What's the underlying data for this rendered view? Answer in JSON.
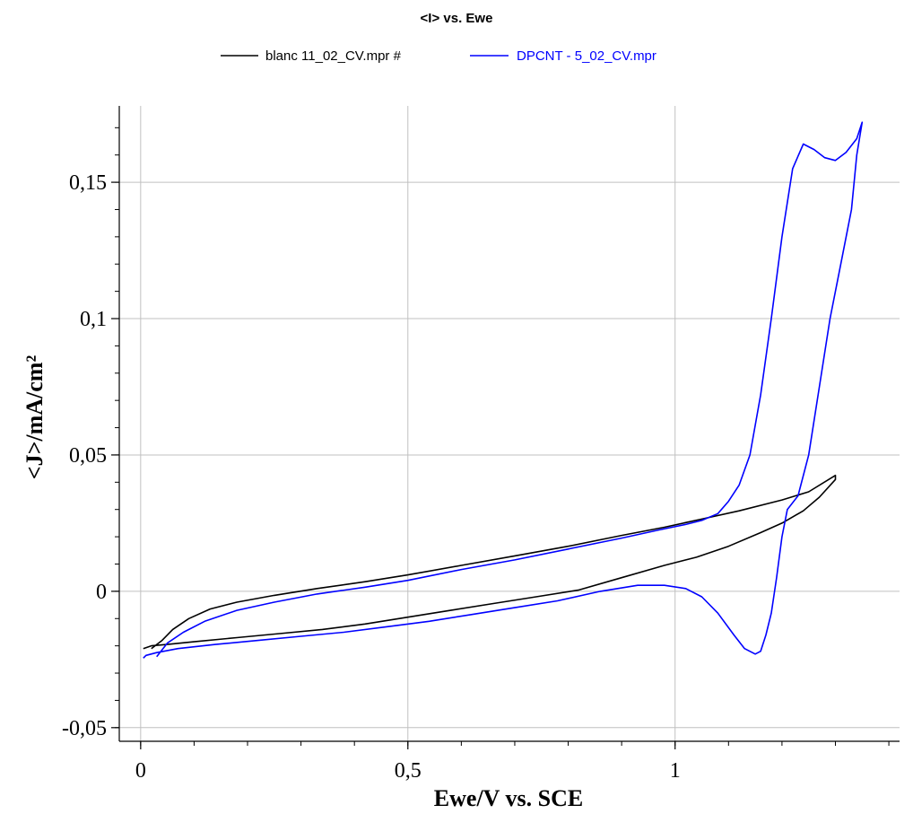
{
  "chart_data": {
    "type": "line",
    "title": "<I> vs. Ewe",
    "xlabel": "Ewe/V vs. SCE",
    "ylabel": "<J>/mA/cm²",
    "xlim": [
      -0.04,
      1.42
    ],
    "ylim": [
      -0.055,
      0.178
    ],
    "x_ticks": [
      0,
      0.5,
      1
    ],
    "x_tick_labels": [
      "0",
      "0,5",
      "1"
    ],
    "y_ticks": [
      -0.05,
      0,
      0.05,
      0.1,
      0.15
    ],
    "y_tick_labels": [
      "-0,05",
      "0",
      "0,05",
      "0,1",
      "0,15"
    ],
    "grid": true,
    "legend_position": "top-center",
    "series": [
      {
        "name": "blanc 11_02_CV.mpr #",
        "color": "#000000",
        "x": [
          0.02,
          0.04,
          0.06,
          0.09,
          0.13,
          0.18,
          0.25,
          0.33,
          0.42,
          0.5,
          0.6,
          0.7,
          0.8,
          0.9,
          0.98,
          1.05,
          1.12,
          1.2,
          1.25,
          1.3,
          1.3,
          1.27,
          1.24,
          1.2,
          1.16,
          1.1,
          1.04,
          0.98,
          0.9,
          0.82,
          0.74,
          0.66,
          0.58,
          0.5,
          0.42,
          0.34,
          0.26,
          0.18,
          0.1,
          0.05,
          0.02,
          0.005
        ],
        "y": [
          -0.021,
          -0.018,
          -0.014,
          -0.01,
          -0.0065,
          -0.004,
          -0.0015,
          0.001,
          0.0035,
          0.006,
          0.0095,
          0.013,
          0.0165,
          0.0205,
          0.0235,
          0.0265,
          0.0295,
          0.0335,
          0.0365,
          0.0425,
          0.041,
          0.0345,
          0.0295,
          0.025,
          0.0215,
          0.0165,
          0.0125,
          0.0095,
          0.005,
          0.0005,
          -0.002,
          -0.0045,
          -0.007,
          -0.0095,
          -0.012,
          -0.014,
          -0.0155,
          -0.017,
          -0.0185,
          -0.0195,
          -0.02,
          -0.021
        ]
      },
      {
        "name": "DPCNT - 5_02_CV.mpr",
        "color": "#0000ff",
        "x": [
          0.03,
          0.05,
          0.08,
          0.12,
          0.18,
          0.25,
          0.33,
          0.42,
          0.5,
          0.6,
          0.7,
          0.8,
          0.9,
          0.97,
          1.02,
          1.05,
          1.08,
          1.1,
          1.12,
          1.14,
          1.16,
          1.18,
          1.2,
          1.22,
          1.24,
          1.26,
          1.28,
          1.3,
          1.32,
          1.34,
          1.35,
          1.34,
          1.33,
          1.31,
          1.29,
          1.27,
          1.25,
          1.23,
          1.21,
          1.2,
          1.19,
          1.18,
          1.17,
          1.16,
          1.15,
          1.13,
          1.11,
          1.08,
          1.05,
          1.02,
          0.98,
          0.93,
          0.86,
          0.78,
          0.7,
          0.62,
          0.54,
          0.46,
          0.38,
          0.3,
          0.22,
          0.14,
          0.07,
          0.03,
          0.01,
          0.005
        ],
        "y": [
          -0.024,
          -0.019,
          -0.015,
          -0.011,
          -0.007,
          -0.004,
          -0.001,
          0.0015,
          0.004,
          0.008,
          0.0115,
          0.0155,
          0.0195,
          0.0225,
          0.0245,
          0.026,
          0.0285,
          0.033,
          0.039,
          0.05,
          0.072,
          0.1,
          0.13,
          0.155,
          0.164,
          0.162,
          0.159,
          0.158,
          0.161,
          0.166,
          0.172,
          0.16,
          0.14,
          0.12,
          0.1,
          0.075,
          0.05,
          0.035,
          0.03,
          0.02,
          0.005,
          -0.008,
          -0.016,
          -0.022,
          -0.023,
          -0.021,
          -0.016,
          -0.008,
          -0.002,
          0.001,
          0.0022,
          0.0022,
          0.0,
          -0.0035,
          -0.006,
          -0.0085,
          -0.011,
          -0.013,
          -0.015,
          -0.0165,
          -0.018,
          -0.0195,
          -0.021,
          -0.0225,
          -0.0235,
          -0.0245
        ]
      }
    ]
  }
}
